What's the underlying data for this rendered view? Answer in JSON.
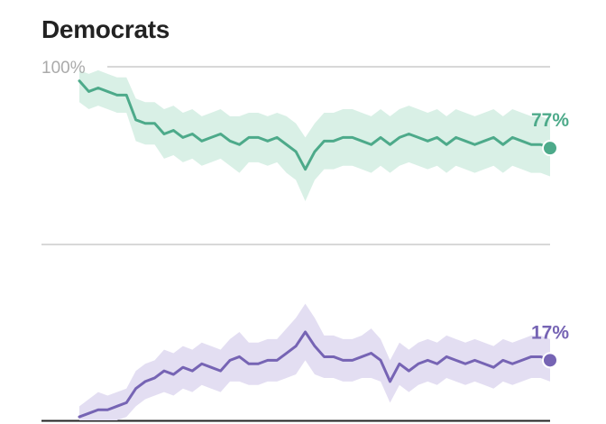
{
  "chart": {
    "title": "Democrats",
    "y_tick_label": "100%"
  },
  "chart_data": {
    "type": "line",
    "title": "Democrats",
    "ytick_labels": [
      "100%"
    ],
    "ylim": [
      0,
      100
    ],
    "grid": true,
    "legend": "none",
    "series": [
      {
        "color": "#4daa8a",
        "band_color": "#d9f0e6",
        "end_label": "77%",
        "x": [
          0,
          2,
          4,
          6,
          8,
          10,
          12,
          14,
          16,
          18,
          20,
          22,
          24,
          26,
          28,
          30,
          32,
          34,
          36,
          38,
          40,
          42,
          44,
          46,
          48,
          50,
          52,
          54,
          56,
          58,
          60,
          62,
          64,
          66,
          68,
          70,
          72,
          74,
          76,
          78,
          80,
          82,
          84,
          86,
          88,
          90,
          92,
          94,
          96,
          98,
          100
        ],
        "values": [
          96,
          93,
          94,
          93,
          92,
          92,
          85,
          84,
          84,
          81,
          82,
          80,
          81,
          79,
          80,
          81,
          79,
          78,
          80,
          80,
          79,
          80,
          78,
          76,
          71,
          76,
          79,
          79,
          80,
          80,
          79,
          78,
          80,
          78,
          80,
          81,
          80,
          79,
          80,
          78,
          80,
          79,
          78,
          79,
          80,
          78,
          80,
          79,
          78,
          78,
          77
        ],
        "upper": [
          99,
          98,
          99,
          98,
          97,
          97,
          91,
          90,
          90,
          88,
          89,
          87,
          88,
          86,
          87,
          88,
          86,
          86,
          87,
          87,
          86,
          87,
          86,
          84,
          80,
          84,
          87,
          87,
          88,
          88,
          87,
          86,
          88,
          86,
          88,
          89,
          88,
          87,
          88,
          86,
          88,
          87,
          86,
          87,
          88,
          86,
          88,
          87,
          86,
          86,
          85
        ],
        "lower": [
          90,
          88,
          89,
          88,
          87,
          87,
          79,
          78,
          78,
          74,
          75,
          73,
          74,
          72,
          73,
          74,
          72,
          70,
          73,
          73,
          72,
          73,
          70,
          68,
          62,
          68,
          71,
          71,
          72,
          72,
          71,
          70,
          72,
          70,
          72,
          73,
          72,
          71,
          72,
          70,
          72,
          71,
          70,
          71,
          72,
          70,
          72,
          71,
          70,
          70,
          69
        ]
      },
      {
        "color": "#7664b4",
        "band_color": "#e3def2",
        "end_label": "17%",
        "x": [
          0,
          2,
          4,
          6,
          8,
          10,
          12,
          14,
          16,
          18,
          20,
          22,
          24,
          26,
          28,
          30,
          32,
          34,
          36,
          38,
          40,
          42,
          44,
          46,
          48,
          50,
          52,
          54,
          56,
          58,
          60,
          62,
          64,
          66,
          68,
          70,
          72,
          74,
          76,
          78,
          80,
          82,
          84,
          86,
          88,
          90,
          92,
          94,
          96,
          98,
          100
        ],
        "values": [
          1,
          2,
          3,
          3,
          4,
          5,
          9,
          11,
          12,
          14,
          13,
          15,
          14,
          16,
          15,
          14,
          17,
          18,
          16,
          16,
          17,
          17,
          19,
          21,
          25,
          21,
          18,
          18,
          17,
          17,
          18,
          19,
          17,
          11,
          16,
          14,
          16,
          17,
          16,
          18,
          17,
          16,
          17,
          16,
          15,
          17,
          16,
          17,
          18,
          18,
          17
        ],
        "upper": [
          4,
          6,
          8,
          7,
          8,
          9,
          14,
          16,
          17,
          20,
          19,
          21,
          20,
          22,
          21,
          20,
          23,
          25,
          22,
          22,
          23,
          23,
          26,
          29,
          33,
          29,
          24,
          24,
          23,
          23,
          24,
          26,
          23,
          17,
          22,
          20,
          22,
          23,
          22,
          24,
          23,
          22,
          23,
          22,
          21,
          23,
          22,
          23,
          24,
          24,
          23
        ],
        "lower": [
          0,
          0,
          0,
          0,
          0,
          1,
          4,
          6,
          7,
          8,
          7,
          9,
          8,
          10,
          9,
          8,
          11,
          11,
          10,
          10,
          11,
          11,
          12,
          13,
          17,
          13,
          12,
          12,
          11,
          11,
          12,
          12,
          11,
          5,
          10,
          8,
          10,
          11,
          10,
          12,
          11,
          10,
          11,
          10,
          9,
          11,
          10,
          11,
          12,
          12,
          11
        ]
      }
    ]
  }
}
